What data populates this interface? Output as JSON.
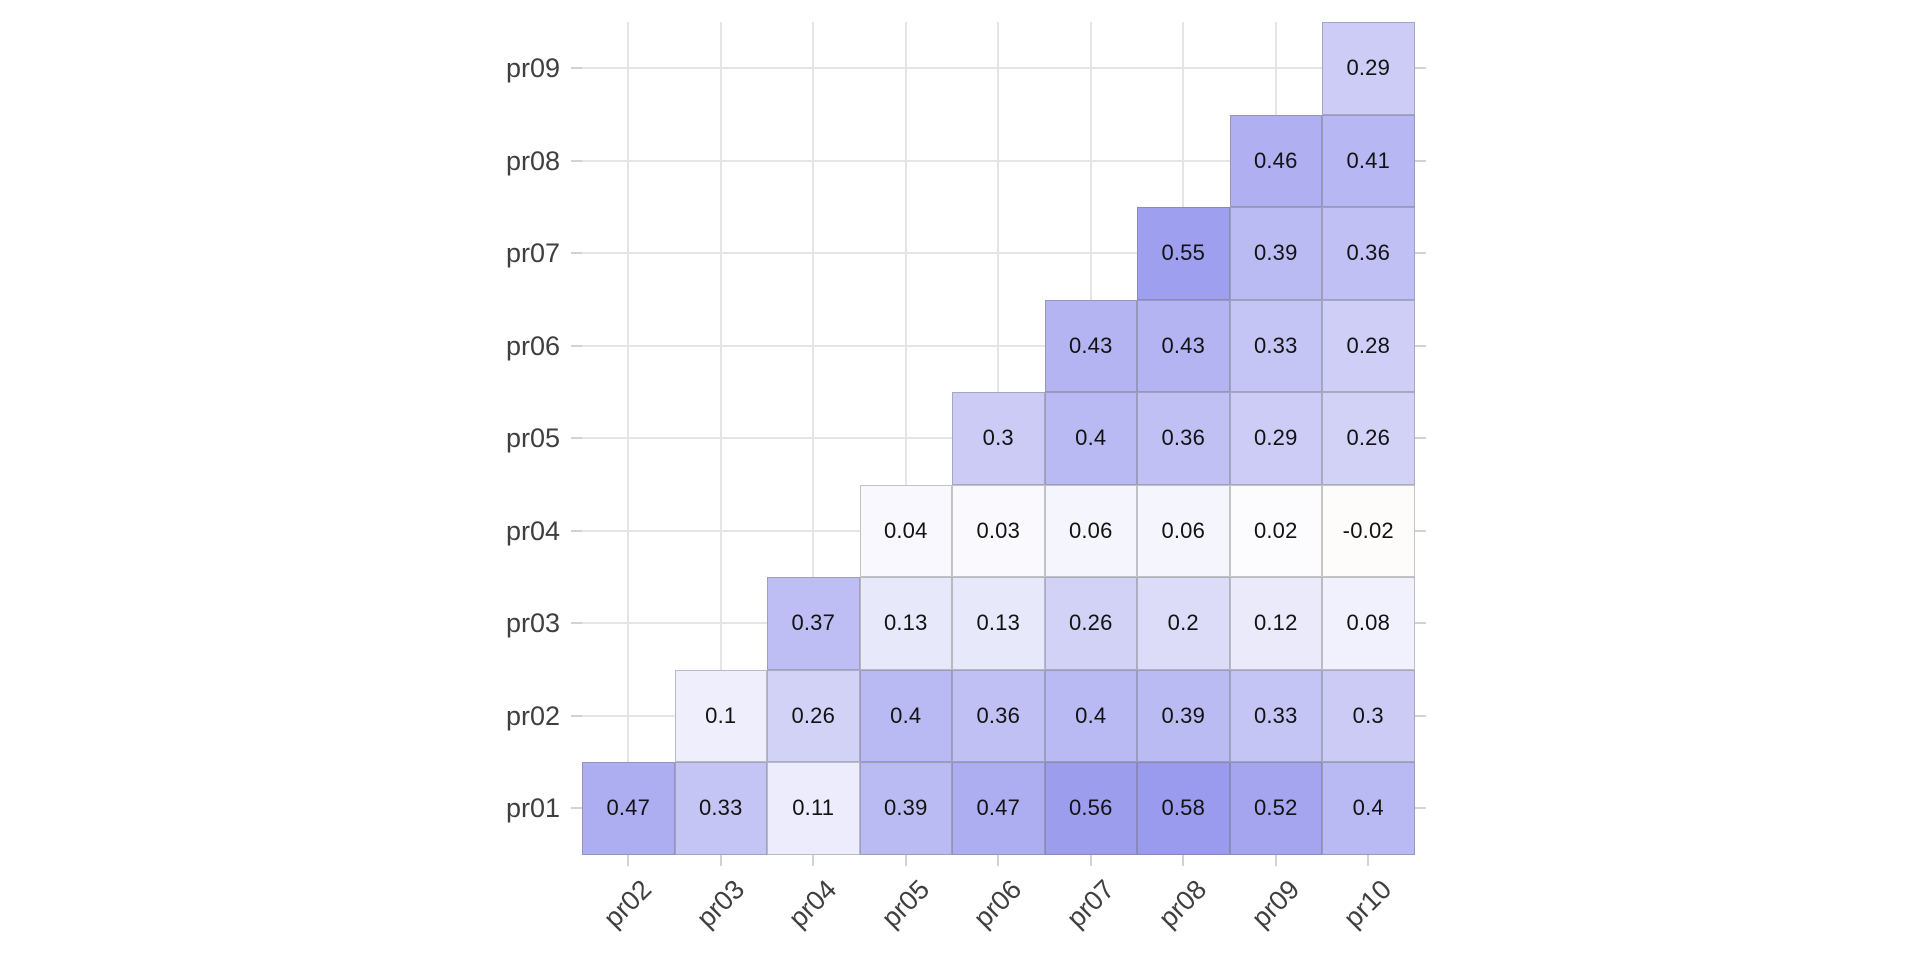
{
  "chart_data": {
    "type": "heatmap",
    "title": "",
    "subtitle": "",
    "legend": "none",
    "grid": true,
    "x_categories": [
      "pr02",
      "pr03",
      "pr04",
      "pr05",
      "pr06",
      "pr07",
      "pr08",
      "pr09",
      "pr10"
    ],
    "y_categories_top_to_bottom": [
      "pr09",
      "pr08",
      "pr07",
      "pr06",
      "pr05",
      "pr04",
      "pr03",
      "pr02",
      "pr01"
    ],
    "value_range": [
      -1,
      1
    ],
    "rows": [
      {
        "label": "pr09",
        "values": [
          null,
          null,
          null,
          null,
          null,
          null,
          null,
          null,
          "0.29"
        ]
      },
      {
        "label": "pr08",
        "values": [
          null,
          null,
          null,
          null,
          null,
          null,
          null,
          "0.46",
          "0.41"
        ]
      },
      {
        "label": "pr07",
        "values": [
          null,
          null,
          null,
          null,
          null,
          null,
          "0.55",
          "0.39",
          "0.36"
        ]
      },
      {
        "label": "pr06",
        "values": [
          null,
          null,
          null,
          null,
          null,
          "0.43",
          "0.43",
          "0.33",
          "0.28"
        ]
      },
      {
        "label": "pr05",
        "values": [
          null,
          null,
          null,
          null,
          "0.3",
          "0.4",
          "0.36",
          "0.29",
          "0.26"
        ]
      },
      {
        "label": "pr04",
        "values": [
          null,
          null,
          null,
          "0.04",
          "0.03",
          "0.06",
          "0.06",
          "0.02",
          "-0.02"
        ]
      },
      {
        "label": "pr03",
        "values": [
          null,
          null,
          "0.37",
          "0.13",
          "0.13",
          "0.26",
          "0.2",
          "0.12",
          "0.08"
        ]
      },
      {
        "label": "pr02",
        "values": [
          null,
          "0.1",
          "0.26",
          "0.4",
          "0.36",
          "0.4",
          "0.39",
          "0.33",
          "0.3"
        ]
      },
      {
        "label": "pr01",
        "values": [
          "0.47",
          "0.33",
          "0.11",
          "0.39",
          "0.47",
          "0.56",
          "0.58",
          "0.52",
          "0.4"
        ]
      }
    ],
    "colors": {
      "positive_high": "#5050E1",
      "zero_mid": "#FFFFFF",
      "negative_low": "#E0643C",
      "gridline": "#E5E5E5",
      "tick": "#D2D2D2",
      "axis_text": "#3F3F3F",
      "cell_text": "#121212",
      "cell_border": "#696969"
    }
  }
}
